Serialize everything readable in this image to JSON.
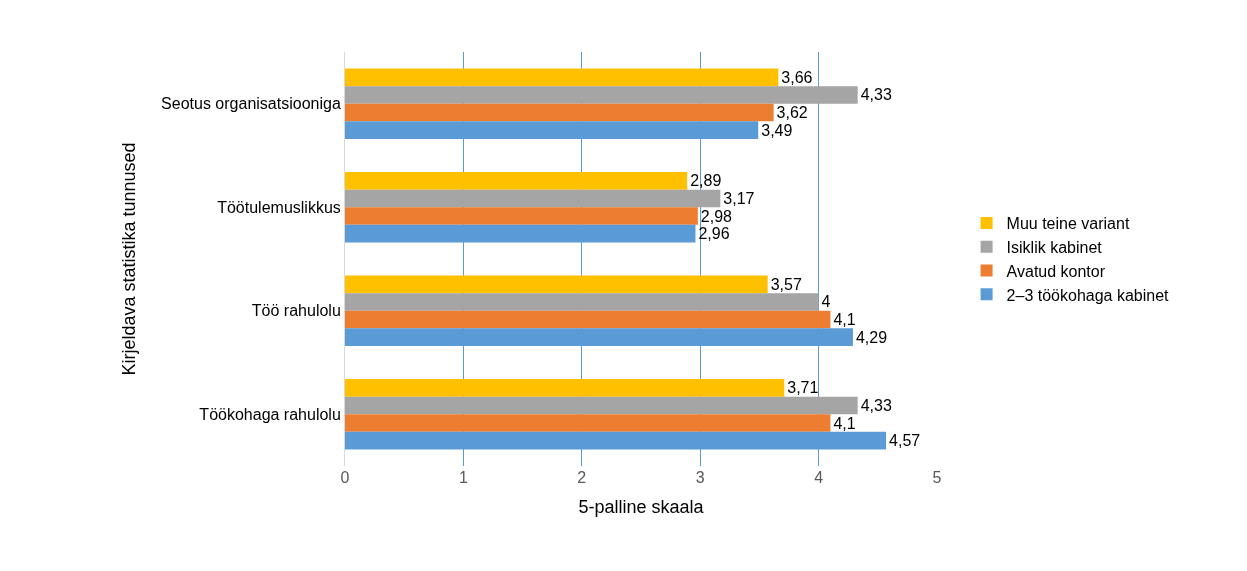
{
  "chart_data": {
    "type": "bar",
    "orientation": "horizontal",
    "xlabel": "5-palline skaala",
    "ylabel": "Kirjeldava statistika tunnused",
    "categories": [
      "Seotus organisatsiooniga",
      "Töötulemuslikkus",
      "Töö rahulolu",
      "Töökohaga rahulolu"
    ],
    "series": [
      {
        "name": "Muu teine variant",
        "color": "#ffc000",
        "values": [
          3.66,
          2.89,
          3.57,
          3.71
        ],
        "value_labels": [
          "3,66",
          "2,89",
          "3,57",
          "3,71"
        ]
      },
      {
        "name": "Isiklik kabinet",
        "color": "#a5a5a5",
        "values": [
          4.33,
          3.17,
          4,
          4.33
        ],
        "value_labels": [
          "4,33",
          "3,17",
          "4",
          "4,33"
        ]
      },
      {
        "name": "Avatud kontor",
        "color": "#ed7d31",
        "values": [
          3.62,
          2.98,
          4.1,
          4.1
        ],
        "value_labels": [
          "3,62",
          "2,98",
          "4,1",
          "4,1"
        ]
      },
      {
        "name": "2–3 töökohaga kabinet",
        "color": "#5b9bd5",
        "values": [
          3.49,
          2.96,
          4.29,
          4.57
        ],
        "value_labels": [
          "3,49",
          "2,96",
          "4,29",
          "4,57"
        ]
      }
    ],
    "xlim": [
      0,
      5
    ],
    "xticks": [
      0,
      1,
      2,
      3,
      4,
      5
    ],
    "grid": "x",
    "legend": "right"
  }
}
